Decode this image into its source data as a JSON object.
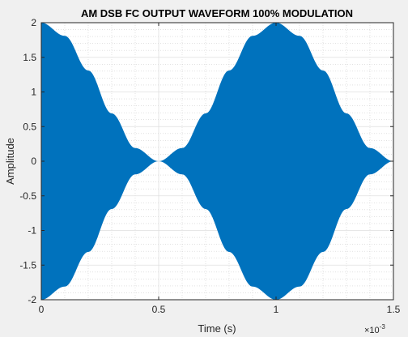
{
  "chart_data": {
    "type": "area",
    "title": "AM DSB FC OUTPUT WAVEFORM 100% MODULATION",
    "xlabel": "Time (s)",
    "ylabel": "Amplitude",
    "xlim": [
      0,
      0.0015
    ],
    "ylim": [
      -2,
      2
    ],
    "x_exponent_label": "×10",
    "x_exponent_power": "-3",
    "x_ticks": [
      0,
      0.0005,
      0.001,
      0.0015
    ],
    "x_tick_labels": [
      "0",
      "0.5",
      "1",
      "1.5"
    ],
    "y_ticks": [
      2,
      1.5,
      1,
      0.5,
      0,
      -0.5,
      -1,
      -1.5,
      -2
    ],
    "y_tick_labels": [
      "2",
      "1.5",
      "1",
      "0.5",
      "0",
      "-0.5",
      "-1",
      "-1.5",
      "-2"
    ],
    "grid": true,
    "minor_grid": true,
    "series": [
      {
        "color": "#0072bd",
        "description_envelope": "1 + cos(2*pi*1000*t)",
        "x": [
          0,
          0.0001,
          0.0002,
          0.0003,
          0.0004,
          0.0005,
          0.0006,
          0.0007,
          0.0008,
          0.0009,
          0.001,
          0.0011,
          0.0012,
          0.0013,
          0.0014,
          0.0015
        ],
        "upper": [
          2,
          1.81,
          1.31,
          0.69,
          0.19,
          0,
          0.19,
          0.69,
          1.31,
          1.81,
          2,
          1.81,
          1.31,
          0.69,
          0.19,
          0
        ],
        "lower": [
          -2,
          -1.81,
          -1.31,
          -0.69,
          -0.19,
          0,
          -0.19,
          -0.69,
          -1.31,
          -1.81,
          -2,
          -1.81,
          -1.31,
          -0.69,
          -0.19,
          0
        ]
      }
    ]
  }
}
